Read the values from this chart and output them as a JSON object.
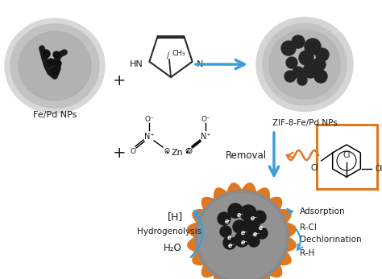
{
  "bg_color": "#ffffff",
  "blue_color": "#3a9fd8",
  "orange_color": "#e07820",
  "black": "#1a1a1a",
  "label_fepd": "Fe/Pd NPs",
  "label_zif": "ZIF-8-Fe/Pd NPs",
  "label_removal": "Removal",
  "label_adsorption": "Adsorption",
  "label_rcl": "R-Cl",
  "label_dechlorination": "Dechlorination",
  "label_rh": "R-H",
  "label_h": "[H]",
  "label_hydrogenolysis": "Hydrogenolysis",
  "label_h2o": "H₂O",
  "cl1_label": "Cl",
  "cl2_label": "Cl",
  "oh_label": "OH",
  "gray_light": "#c8c8c8",
  "gray_dark": "#888888",
  "np_color": "#2a2a2a",
  "tem_bg": "#b0b0b0"
}
